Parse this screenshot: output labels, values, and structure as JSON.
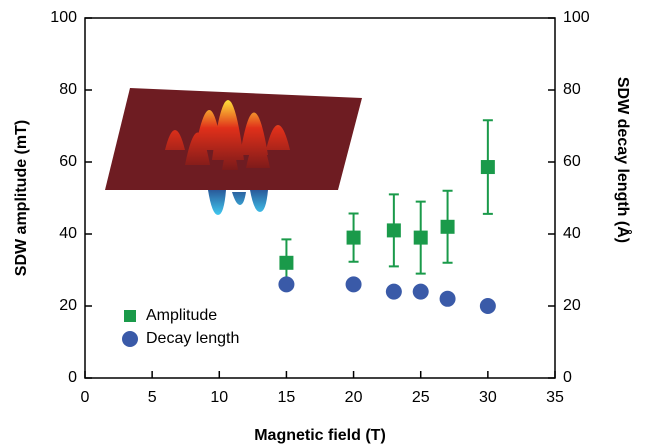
{
  "chart_data": {
    "type": "scatter",
    "x_label": "Magnetic field (T)",
    "y_label": "SDW amplitude (mT)",
    "y2_label": "SDW decay length (Å)",
    "xlim": [
      0,
      35
    ],
    "xticks": [
      0,
      5,
      10,
      15,
      20,
      25,
      30,
      35
    ],
    "ylim": [
      0,
      100
    ],
    "yticks": [
      0,
      20,
      40,
      60,
      80,
      100
    ],
    "y2lim": [
      0,
      100
    ],
    "y2ticks": [
      0,
      20,
      40,
      60,
      80,
      100
    ],
    "legend": "lower left",
    "series": [
      {
        "name": "Amplitude",
        "color": "#1a9a4a",
        "marker": "square",
        "x": [
          15,
          20,
          23,
          25,
          27,
          30
        ],
        "values": [
          32,
          39,
          41,
          39,
          42,
          58.6
        ],
        "errors": [
          6.5,
          6.7,
          10,
          10,
          10,
          13
        ]
      },
      {
        "name": "Decay length",
        "color": "#3a5aa8",
        "marker": "circle",
        "axis": "y2",
        "x": [
          15,
          20,
          23,
          25,
          27,
          30
        ],
        "values": [
          26,
          26,
          24,
          24,
          22,
          20
        ]
      }
    ]
  }
}
